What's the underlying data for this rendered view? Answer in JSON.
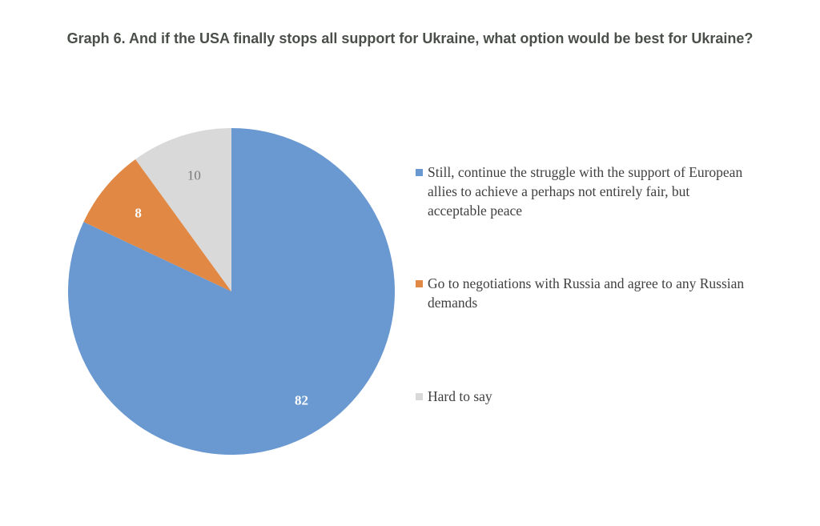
{
  "chart_data": {
    "type": "pie",
    "title": "Graph 6. And if the USA finally stops all support for Ukraine, what option would be best for Ukraine?",
    "slices": [
      {
        "label": "Still, continue the struggle with the support of European allies to achieve a perhaps not entirely fair, but acceptable peace",
        "value": 82,
        "value_label": "82",
        "color": "#6a98d0",
        "label_color": "#ffffff",
        "label_bold": true
      },
      {
        "label": "Go to negotiations with Russia and agree to any Russian demands",
        "value": 8,
        "value_label": "8",
        "color": "#e08844",
        "label_color": "#ffffff",
        "label_bold": true
      },
      {
        "label": "Hard to say",
        "value": 10,
        "value_label": "10",
        "color": "#d9d9d9",
        "label_color": "#7a7a7a",
        "label_bold": false
      }
    ],
    "start": "12 o'clock",
    "direction": "clockwise",
    "legend_position": "right"
  }
}
